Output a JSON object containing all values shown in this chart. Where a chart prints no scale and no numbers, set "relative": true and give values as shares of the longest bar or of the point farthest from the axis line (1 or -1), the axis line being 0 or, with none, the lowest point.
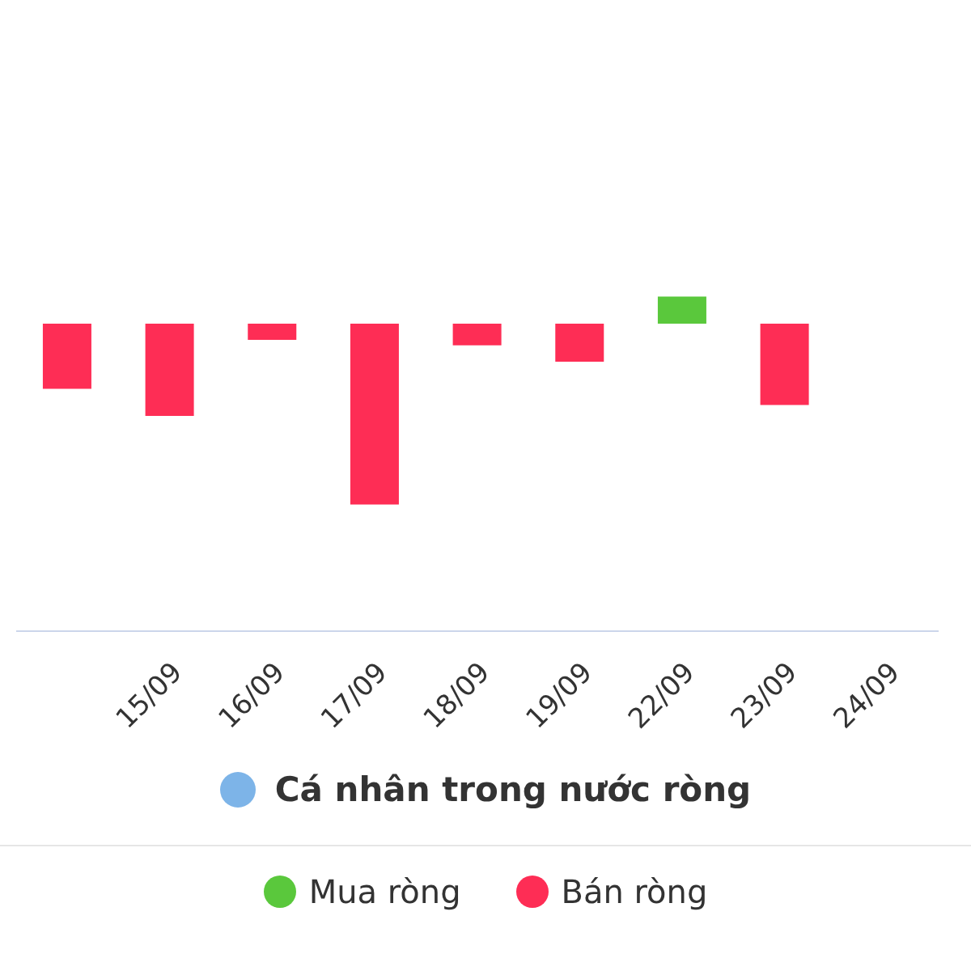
{
  "chart_data": {
    "type": "bar",
    "relative": true,
    "stacked": true,
    "categories": [
      null,
      "15/09",
      "16/09",
      "17/09",
      "18/09",
      "19/09",
      "22/09",
      "23/09",
      "24/09"
    ],
    "series": [
      {
        "name": "Mua ròng",
        "color": "#5ac83c",
        "values": [
          null,
          null,
          null,
          null,
          null,
          null,
          0.15,
          null,
          null
        ]
      },
      {
        "name": "Bán ròng",
        "color": "#fe2d55",
        "values": [
          -0.36,
          -0.51,
          -0.09,
          -1,
          -0.12,
          -0.21,
          null,
          -0.45,
          null
        ]
      }
    ],
    "legend_title": "Cá nhân trong nước ròng",
    "legend": "bottom"
  }
}
